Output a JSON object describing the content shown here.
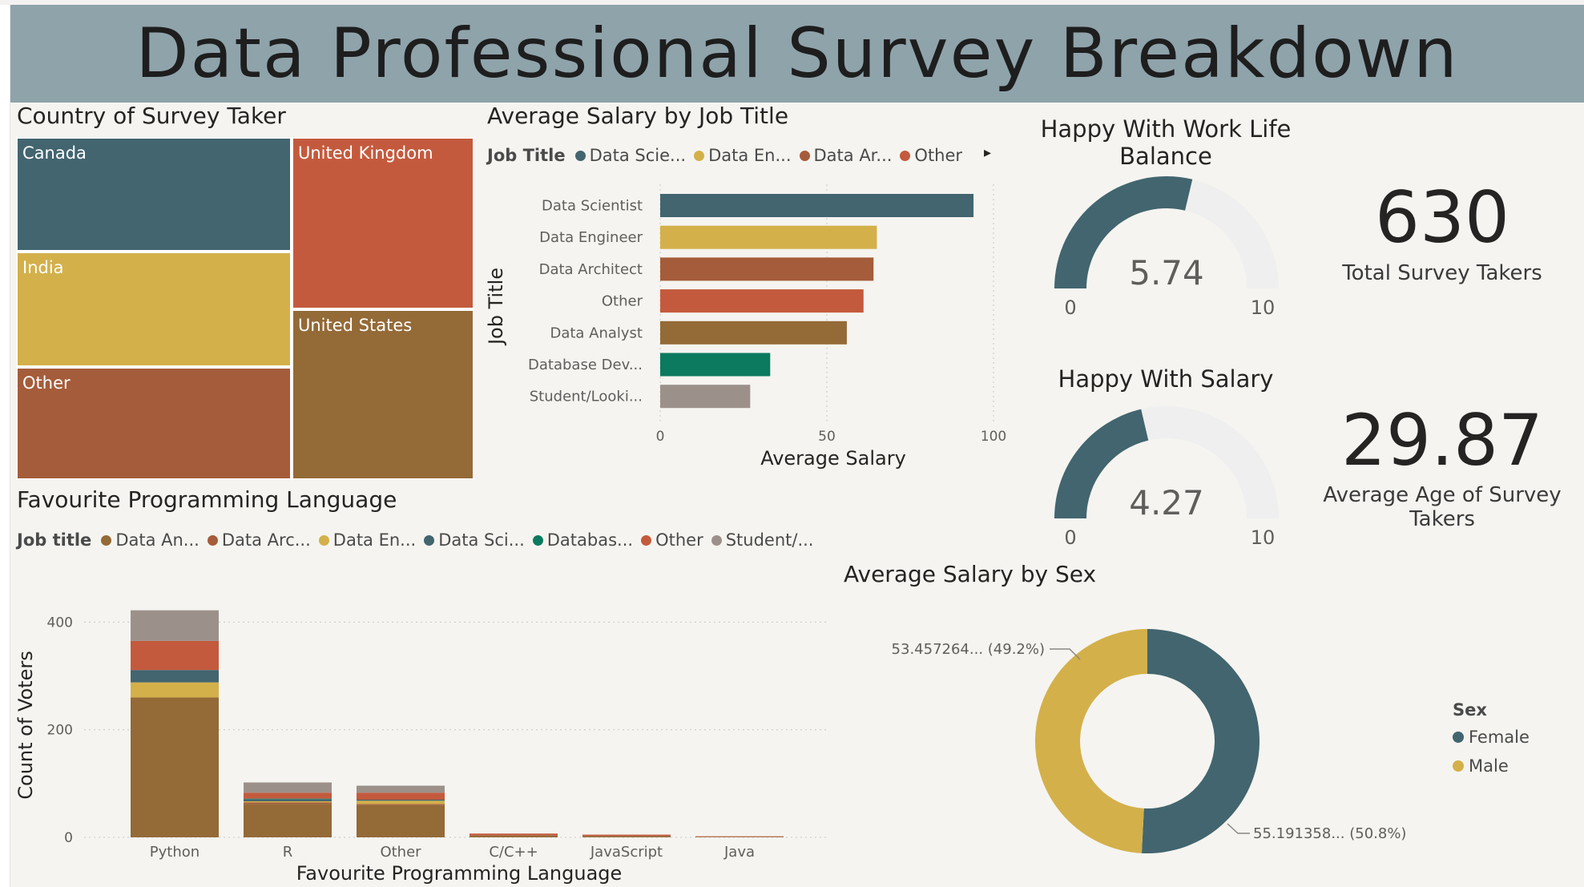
{
  "report": {
    "title": "Data Professional Survey Breakdown"
  },
  "colors": {
    "teal": "#42656f",
    "gold": "#d3b04a",
    "rust": "#a55c3a",
    "red": "#c45a3d",
    "brown": "#946a37",
    "green": "#0b7a5e",
    "gray": "#9c918a",
    "gauge_track": "#efefef",
    "header": "#8fa3ab"
  },
  "country": {
    "title": "Country of Survey Taker",
    "tiles": [
      {
        "label": "Canada",
        "color": "#42656f"
      },
      {
        "label": "India",
        "color": "#d3b04a"
      },
      {
        "label": "Other",
        "color": "#a55c3a"
      },
      {
        "label": "United Kingdom",
        "color": "#c45a3d"
      },
      {
        "label": "United States",
        "color": "#946a37"
      }
    ]
  },
  "salary_by_job": {
    "title": "Average Salary by Job Title",
    "legend_title": "Job Title",
    "legend": [
      {
        "label": "Data Scie...",
        "color": "#42656f"
      },
      {
        "label": "Data En...",
        "color": "#d3b04a"
      },
      {
        "label": "Data Ar...",
        "color": "#a55c3a"
      },
      {
        "label": "Other",
        "color": "#c45a3d"
      }
    ],
    "legend_more": "▸"
  },
  "work_life": {
    "title_line1": "Happy With Work Life",
    "title_line2": "Balance",
    "value": "5.74",
    "min": "0",
    "max": "10"
  },
  "happy_salary": {
    "title": "Happy With Salary",
    "value": "4.27",
    "min": "0",
    "max": "10"
  },
  "kpi_total": {
    "value": "630",
    "label": "Total Survey Takers"
  },
  "kpi_age": {
    "value": "29.87",
    "label_line1": "Average Age of Survey",
    "label_line2": "Takers"
  },
  "languages": {
    "title": "Favourite Programming Language",
    "legend_title": "Job title",
    "legend": [
      {
        "label": "Data An...",
        "color": "#946a37"
      },
      {
        "label": "Data Arc...",
        "color": "#a55c3a"
      },
      {
        "label": "Data En...",
        "color": "#d3b04a"
      },
      {
        "label": "Data Sci...",
        "color": "#42656f"
      },
      {
        "label": "Databas...",
        "color": "#0b7a5e"
      },
      {
        "label": "Other",
        "color": "#c45a3d"
      },
      {
        "label": "Student/...",
        "color": "#9c918a"
      }
    ]
  },
  "salary_by_sex": {
    "title": "Average Salary by Sex",
    "legend_title": "Sex",
    "legend": [
      {
        "label": "Female",
        "color": "#42656f"
      },
      {
        "label": "Male",
        "color": "#d3b04a"
      }
    ],
    "label_male": "53.457264... (49.2%)",
    "label_female": "55.191358... (50.8%)"
  },
  "chart_data": [
    {
      "type": "bar",
      "orientation": "horizontal",
      "title": "Average Salary by Job Title",
      "xlabel": "Average Salary",
      "ylabel": "Job Title",
      "categories": [
        "Data Scientist",
        "Data Engineer",
        "Data Architect",
        "Other",
        "Data Analyst",
        "Database Dev...",
        "Student/Looki..."
      ],
      "values": [
        94,
        65,
        64,
        61,
        56,
        33,
        27
      ],
      "colors": [
        "#42656f",
        "#d3b04a",
        "#a55c3a",
        "#c45a3d",
        "#946a37",
        "#0b7a5e",
        "#9c918a"
      ],
      "xlim": [
        0,
        100
      ],
      "xticks": [
        0,
        50,
        100
      ]
    },
    {
      "type": "bar",
      "stacked": true,
      "title": "Favourite Programming Language",
      "xlabel": "Favourite Programming Language",
      "ylabel": "Count of Voters",
      "categories": [
        "Python",
        "R",
        "Other",
        "C/C++",
        "JavaScript",
        "Java"
      ],
      "ylim": [
        0,
        420
      ],
      "yticks": [
        0,
        200,
        400
      ],
      "series": [
        {
          "name": "Data An...",
          "color": "#946a37",
          "values": [
            260,
            62,
            60,
            3,
            2,
            1
          ]
        },
        {
          "name": "Data Arc...",
          "color": "#a55c3a",
          "values": [
            0,
            3,
            2,
            1,
            1,
            0
          ]
        },
        {
          "name": "Data En...",
          "color": "#d3b04a",
          "values": [
            28,
            2,
            6,
            0,
            0,
            0
          ]
        },
        {
          "name": "Data Sci...",
          "color": "#42656f",
          "values": [
            23,
            4,
            2,
            0,
            0,
            0
          ]
        },
        {
          "name": "Databas...",
          "color": "#0b7a5e",
          "values": [
            0,
            1,
            0,
            0,
            0,
            0
          ]
        },
        {
          "name": "Other",
          "color": "#c45a3d",
          "values": [
            54,
            11,
            13,
            3,
            2,
            1
          ]
        },
        {
          "name": "Student/...",
          "color": "#9c918a",
          "values": [
            57,
            19,
            13,
            0,
            0,
            0
          ]
        }
      ]
    },
    {
      "type": "pie",
      "donut": true,
      "title": "Average Salary by Sex",
      "categories": [
        "Female",
        "Male"
      ],
      "values": [
        55.191358,
        53.457264
      ],
      "percent": [
        50.8,
        49.2
      ],
      "colors": [
        "#42656f",
        "#d3b04a"
      ]
    },
    {
      "type": "gauge",
      "title": "Happy With Work Life Balance",
      "value": 5.74,
      "range": [
        0,
        10
      ]
    },
    {
      "type": "gauge",
      "title": "Happy With Salary",
      "value": 4.27,
      "range": [
        0,
        10
      ]
    }
  ]
}
